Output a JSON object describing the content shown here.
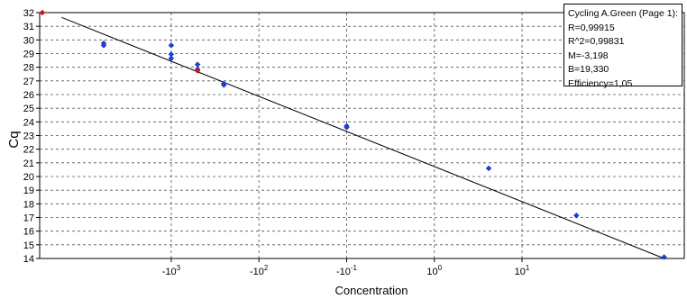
{
  "chart_data": {
    "type": "scatter",
    "title": "",
    "xlabel": "Concentration",
    "ylabel": "Cq",
    "ylim": [
      14,
      32
    ],
    "y_ticks": [
      "14",
      "15",
      "16",
      "17",
      "18",
      "19",
      "20",
      "21",
      "22",
      "23",
      "24",
      "25",
      "26",
      "27",
      "28",
      "29",
      "30",
      "31",
      "32"
    ],
    "xlim_log10": [
      -5.5,
      1.85
    ],
    "x_ticks": [
      {
        "base": "-10",
        "exp": "3",
        "log10": -4
      },
      {
        "base": "-10",
        "exp": "2",
        "log10": -3
      },
      {
        "base": "-10",
        "exp": "-1",
        "log10": -2
      },
      {
        "base": "10",
        "exp": "0",
        "log10": -1
      },
      {
        "base": "10",
        "exp": "1",
        "log10": 0
      }
    ],
    "grid": true,
    "series": [
      {
        "color": "#1f3fd0",
        "points": [
          {
            "x": -4.77,
            "y": 29.75
          },
          {
            "x": -4.77,
            "y": 29.6
          },
          {
            "x": -4.0,
            "y": 29.6
          },
          {
            "x": -4.0,
            "y": 28.95
          },
          {
            "x": -4.0,
            "y": 28.65
          },
          {
            "x": -3.7,
            "y": 28.2
          },
          {
            "x": -3.7,
            "y": 27.85
          },
          {
            "x": -3.4,
            "y": 26.8
          },
          {
            "x": -3.4,
            "y": 26.7
          },
          {
            "x": -2.0,
            "y": 23.7
          },
          {
            "x": -2.0,
            "y": 23.6
          },
          {
            "x": -0.38,
            "y": 20.6
          },
          {
            "x": 0.62,
            "y": 17.15
          },
          {
            "x": 1.62,
            "y": 14.1
          }
        ]
      },
      {
        "color": "#cc1111",
        "points": [
          {
            "x": -5.47,
            "y": 32.0
          },
          {
            "x": -3.7,
            "y": 27.75
          }
        ]
      }
    ],
    "fit_line": {
      "x": [
        -5.25,
        1.62
      ],
      "y": [
        31.65,
        14.0
      ],
      "color": "#000000"
    },
    "stats": {
      "title": "Cycling A.Green (Page 1):",
      "lines": [
        "R=0,99915",
        "R^2=0,99831",
        "M=-3,198",
        "B=19,330",
        "Efficiency=1,05"
      ]
    },
    "legend_position": "top-right"
  }
}
